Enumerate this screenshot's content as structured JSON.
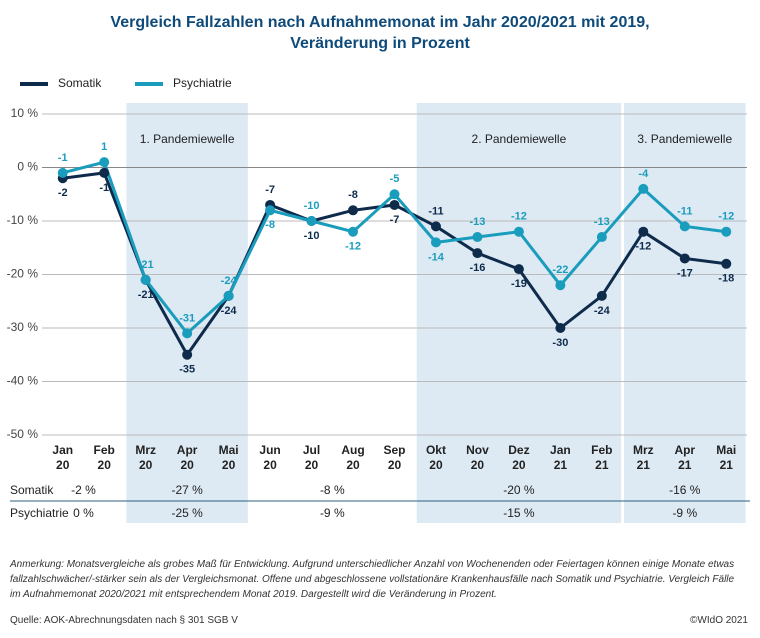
{
  "chart_data": {
    "type": "line",
    "title": "Vergleich Fallzahlen nach Aufnahmemonat im Jahr 2020/2021 mit 2019,\nVeränderung in Prozent",
    "categories": [
      "Jan\n20",
      "Feb\n20",
      "Mrz\n20",
      "Apr\n20",
      "Mai\n20",
      "Jun\n20",
      "Jul\n20",
      "Aug\n20",
      "Sep\n20",
      "Okt\n20",
      "Nov\n20",
      "Dez\n20",
      "Jan\n21",
      "Feb\n21",
      "Mrz\n21",
      "Apr\n21",
      "Mai\n21"
    ],
    "series": [
      {
        "name": "Somatik",
        "color": "#0e2b4c",
        "values": [
          -2,
          -1,
          -21,
          -35,
          -24,
          -7,
          -10,
          -8,
          -7,
          -11,
          -16,
          -19,
          -30,
          -24,
          -12,
          -17,
          -18
        ]
      },
      {
        "name": "Psychiatrie",
        "color": "#1a9dbd",
        "values": [
          -1,
          1,
          -21,
          -31,
          -24,
          -8,
          -10,
          -12,
          -5,
          -14,
          -13,
          -12,
          -22,
          -13,
          -4,
          -11,
          -12
        ]
      }
    ],
    "ylim": [
      -50,
      10
    ],
    "yticks": [
      {
        "value": 10,
        "label": "10 %"
      },
      {
        "value": 0,
        "label": "0 %"
      },
      {
        "value": -10,
        "label": "-10 %"
      },
      {
        "value": -20,
        "label": "-20 %"
      },
      {
        "value": -30,
        "label": "-30 %"
      },
      {
        "value": -40,
        "label": "-40 %"
      },
      {
        "value": -50,
        "label": "-50 %"
      }
    ],
    "grid": true,
    "legend": "top-left",
    "bands": [
      {
        "label": "1. Pandemiewelle",
        "from": "Mrz\n20",
        "to": "Mai\n20"
      },
      {
        "label": "2. Pandemiewelle",
        "from": "Okt\n20",
        "to": "Feb\n21"
      },
      {
        "label": "3. Pandemiewelle",
        "from": "Mrz\n21",
        "to": "Mai\n21"
      }
    ],
    "summary": {
      "periods": [
        {
          "from": "Jan\n20",
          "to": "Feb\n20"
        },
        {
          "from": "Mrz\n20",
          "to": "Mai\n20"
        },
        {
          "from": "Jun\n20",
          "to": "Sep\n20"
        },
        {
          "from": "Okt\n20",
          "to": "Feb\n21"
        },
        {
          "from": "Mrz\n21",
          "to": "Mai\n21"
        }
      ],
      "rows": [
        {
          "name": "Somatik",
          "cells": [
            "-2 %",
            "-27 %",
            "-8 %",
            "-20 %",
            "-16 %"
          ]
        },
        {
          "name": "Psychiatrie",
          "cells": [
            "0 %",
            "-25 %",
            "-9 %",
            "-15 %",
            "-9 %"
          ]
        }
      ]
    }
  },
  "note": "Anmerkung: Monatsvergleiche als grobes Maß für Entwicklung. Aufgrund unterschiedlicher Anzahl von Wochenenden oder Feiertagen können einige Monate etwas fallzahlschwächer/-stärker sein als der Vergleichsmonat. Offene und abgeschlossene vollstationäre Krankenhausfälle nach Somatik und Psychiatrie. Vergleich Fälle im Aufnahmemonat 2020/2021 mit entsprechendem Monat 2019. Dargestellt wird die Veränderung in Prozent.",
  "source": "Quelle: AOK-Abrechnungsdaten nach § 301 SGB V",
  "copyright": "©WIdO 2021"
}
